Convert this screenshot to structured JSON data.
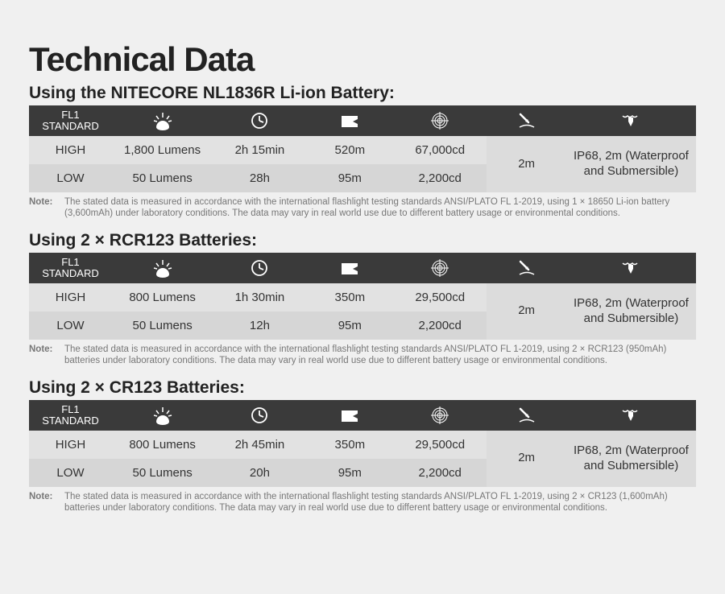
{
  "page": {
    "title": "Technical Data",
    "header_label": "FL1\nSTANDARD",
    "note_label": "Note:",
    "colors": {
      "page_bg": "#f0f0f0",
      "header_bg": "#3a3a3a",
      "header_text": "#ffffff",
      "row_bg_high": "#e2e2e2",
      "row_bg_low": "#d6d6d6",
      "text": "#333333",
      "note_text": "#777777"
    },
    "column_widths_pct": [
      11.5,
      14,
      13,
      12,
      13,
      11,
      18
    ],
    "fonts": {
      "title_size_pt": 32,
      "subtitle_size_pt": 16,
      "cell_size_pt": 11,
      "note_size_pt": 8.5
    },
    "icons": [
      "brightness",
      "runtime",
      "beam-distance",
      "intensity",
      "impact",
      "waterproof"
    ]
  },
  "sections": [
    {
      "subtitle": "Using the NITECORE NL1836R Li-ion Battery:",
      "rows": [
        {
          "mode": "HIGH",
          "lumens": "1,800 Lumens",
          "runtime": "2h 15min",
          "distance": "520m",
          "intensity": "67,000cd"
        },
        {
          "mode": "LOW",
          "lumens": "50 Lumens",
          "runtime": "28h",
          "distance": "95m",
          "intensity": "2,200cd"
        }
      ],
      "impact": "2m",
      "waterproof": "IP68, 2m (Waterproof and Submersible)",
      "note": "The stated data is measured in accordance with the international flashlight testing standards ANSI/PLATO FL 1-2019, using 1 × 18650 Li-ion battery (3,600mAh) under laboratory conditions. The data may vary in real world use due to different battery usage or environmental conditions."
    },
    {
      "subtitle": "Using 2 × RCR123 Batteries:",
      "rows": [
        {
          "mode": "HIGH",
          "lumens": "800 Lumens",
          "runtime": "1h 30min",
          "distance": "350m",
          "intensity": "29,500cd"
        },
        {
          "mode": "LOW",
          "lumens": "50 Lumens",
          "runtime": "12h",
          "distance": "95m",
          "intensity": "2,200cd"
        }
      ],
      "impact": "2m",
      "waterproof": "IP68, 2m (Waterproof and Submersible)",
      "note": "The stated data is measured in accordance with the international flashlight testing standards ANSI/PLATO FL 1-2019, using 2 × RCR123 (950mAh) batteries under laboratory conditions. The data may vary in real world use due to different battery usage or environmental conditions."
    },
    {
      "subtitle": "Using 2 × CR123 Batteries:",
      "rows": [
        {
          "mode": "HIGH",
          "lumens": "800 Lumens",
          "runtime": "2h 45min",
          "distance": "350m",
          "intensity": "29,500cd"
        },
        {
          "mode": "LOW",
          "lumens": "50 Lumens",
          "runtime": "20h",
          "distance": "95m",
          "intensity": "2,200cd"
        }
      ],
      "impact": "2m",
      "waterproof": "IP68, 2m (Waterproof and Submersible)",
      "note": "The stated data is measured in accordance with the international flashlight testing standards ANSI/PLATO FL 1-2019, using 2 × CR123 (1,600mAh) batteries under laboratory conditions. The data may vary in real world use due to different battery usage or environmental conditions."
    }
  ]
}
